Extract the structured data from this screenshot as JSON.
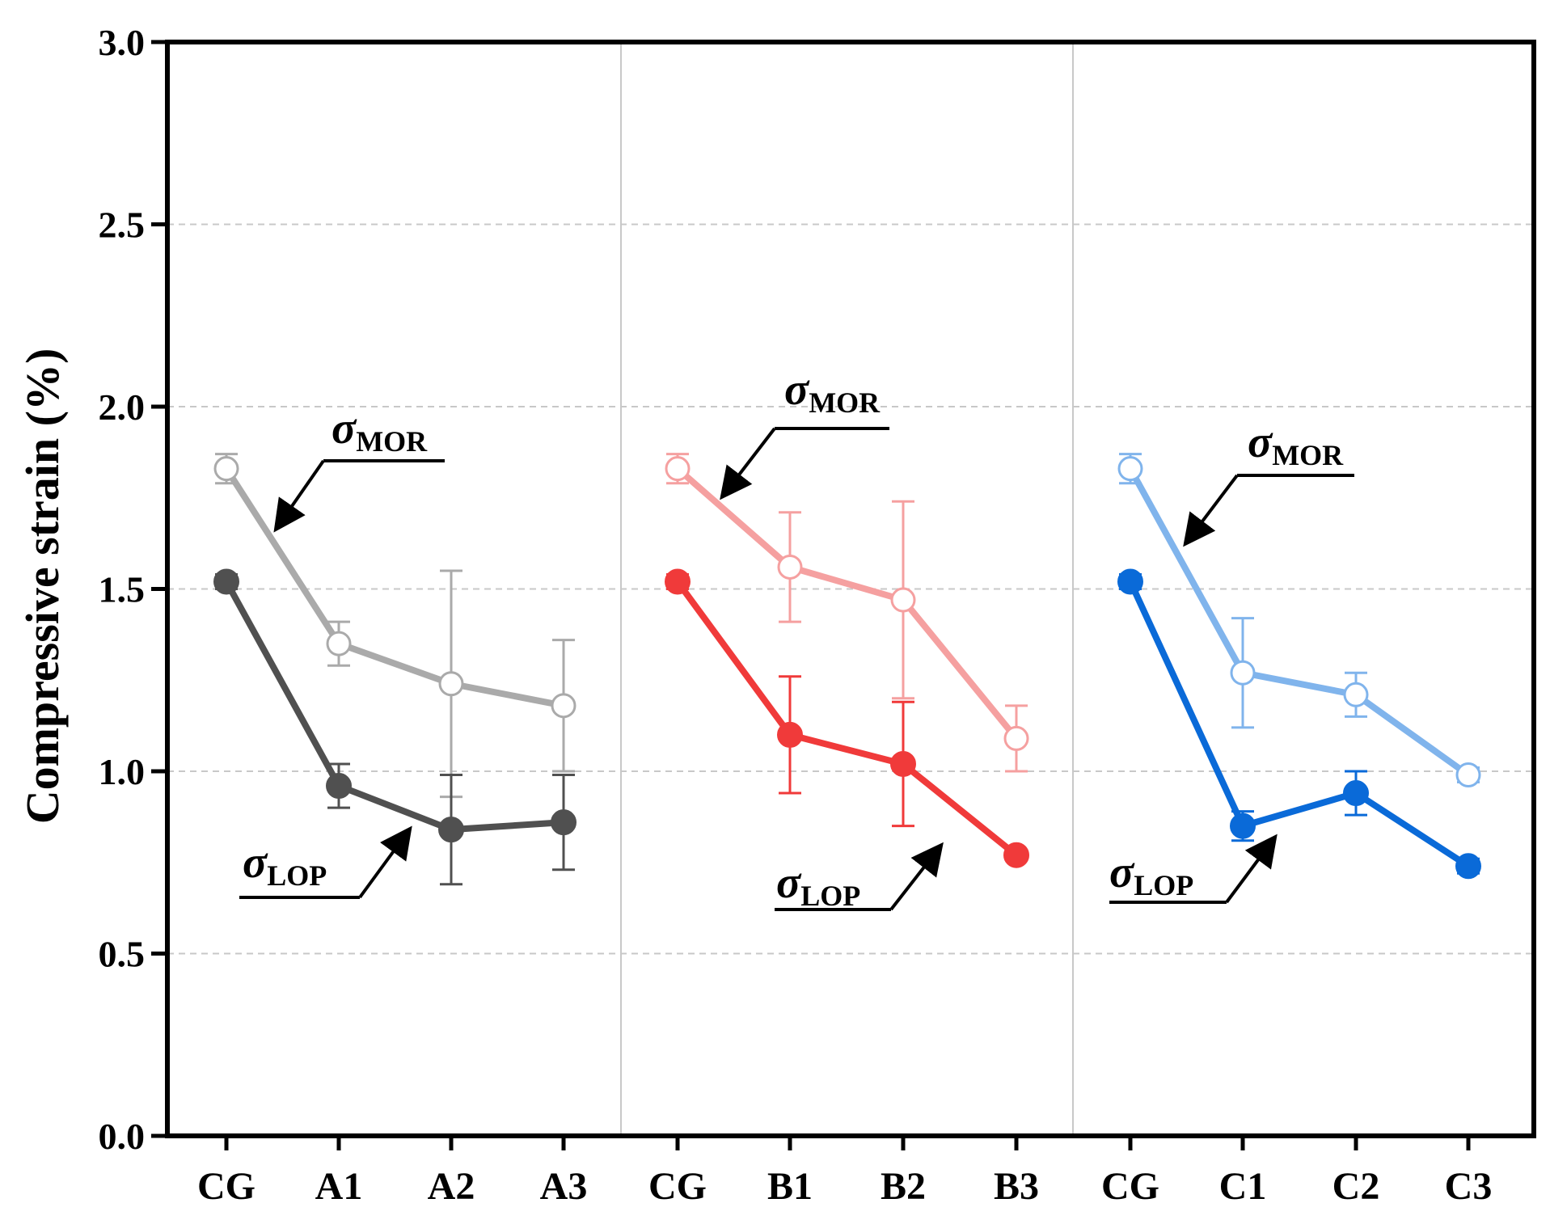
{
  "chart_data": {
    "type": "line",
    "ylabel": "Compressive strain (%)",
    "ylim": [
      0,
      3.0
    ],
    "yticks": [
      0.0,
      0.5,
      1.0,
      1.5,
      2.0,
      2.5,
      3.0
    ],
    "ytick_labels": [
      "0.0",
      "0.5",
      "1.0",
      "1.5",
      "2.0",
      "2.5",
      "3.0"
    ],
    "grid": "horizontal-dashed",
    "categories": [
      "CG",
      "A1",
      "A2",
      "A3",
      "CG",
      "B1",
      "B2",
      "B3",
      "CG",
      "C1",
      "C2",
      "C3"
    ],
    "groups": [
      {
        "categories": [
          "CG",
          "A1",
          "A2",
          "A3"
        ],
        "color_mor": "#aaaaaa",
        "color_lop": "#505050",
        "series": [
          {
            "name": "σMOR",
            "kind": "MOR",
            "values": [
              1.83,
              1.35,
              1.24,
              1.18
            ],
            "errors": [
              0.04,
              0.06,
              0.31,
              0.18
            ]
          },
          {
            "name": "σLOP",
            "kind": "LOP",
            "values": [
              1.52,
              0.96,
              0.84,
              0.86
            ],
            "errors": [
              0.02,
              0.06,
              0.15,
              0.13
            ]
          }
        ]
      },
      {
        "categories": [
          "CG",
          "B1",
          "B2",
          "B3"
        ],
        "color_mor": "#f5a0a0",
        "color_lop": "#f03a3a",
        "series": [
          {
            "name": "σMOR",
            "kind": "MOR",
            "values": [
              1.83,
              1.56,
              1.47,
              1.09
            ],
            "errors": [
              0.04,
              0.15,
              0.27,
              0.09
            ]
          },
          {
            "name": "σLOP",
            "kind": "LOP",
            "values": [
              1.52,
              1.1,
              1.02,
              0.77
            ],
            "errors": [
              0.02,
              0.16,
              0.17,
              0.01
            ]
          }
        ]
      },
      {
        "categories": [
          "CG",
          "C1",
          "C2",
          "C3"
        ],
        "color_mor": "#80b4ec",
        "color_lop": "#0a6ad8",
        "series": [
          {
            "name": "σMOR",
            "kind": "MOR",
            "values": [
              1.83,
              1.27,
              1.21,
              0.99
            ],
            "errors": [
              0.04,
              0.15,
              0.06,
              0.02
            ]
          },
          {
            "name": "σLOP",
            "kind": "LOP",
            "values": [
              1.52,
              0.85,
              0.94,
              0.74
            ],
            "errors": [
              0.02,
              0.04,
              0.06,
              0.02
            ]
          }
        ]
      }
    ],
    "annotations": [
      {
        "symbol": "σ",
        "subscript": "MOR"
      },
      {
        "symbol": "σ",
        "subscript": "LOP"
      },
      {
        "symbol": "σ",
        "subscript": "MOR"
      },
      {
        "symbol": "σ",
        "subscript": "LOP"
      },
      {
        "symbol": "σ",
        "subscript": "MOR"
      },
      {
        "symbol": "σ",
        "subscript": "LOP"
      }
    ]
  }
}
